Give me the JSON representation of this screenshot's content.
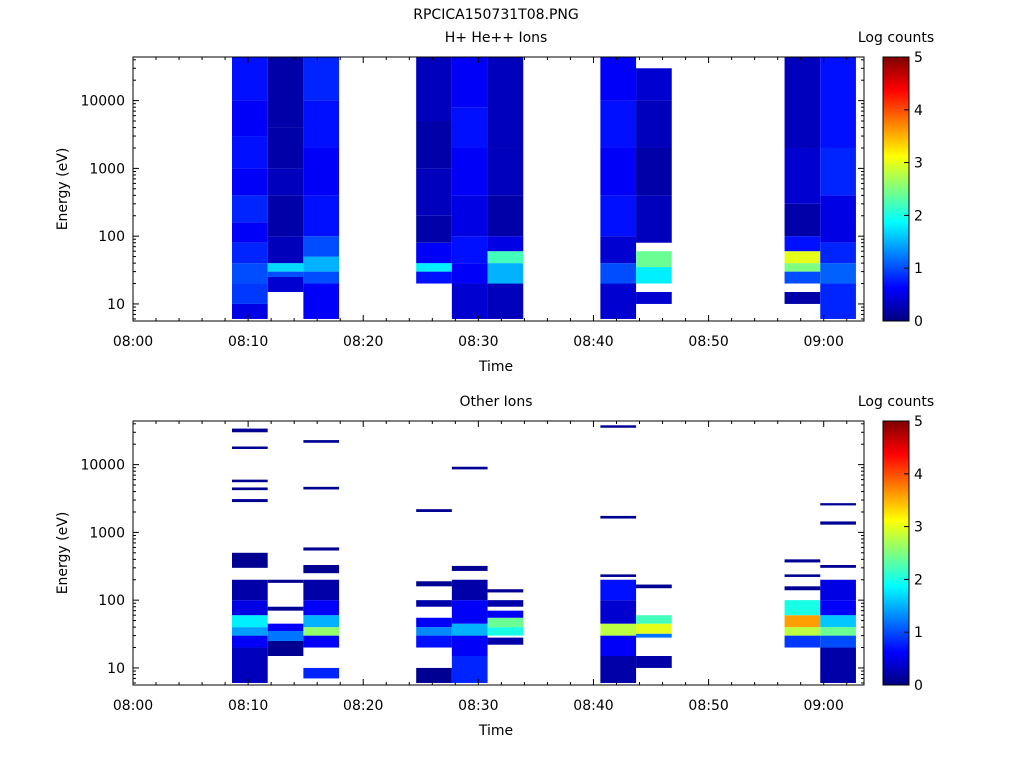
{
  "figure_title": "RPCICA150731T08.PNG",
  "colors": {
    "colormap": [
      "#00007f",
      "#0000ff",
      "#007fff",
      "#00ffff",
      "#7fff7f",
      "#ffff00",
      "#ff7f00",
      "#ff0000",
      "#7f0000"
    ]
  },
  "chart_data": [
    {
      "type": "heatmap",
      "title": "H+ He++ Ions",
      "xlabel": "Time",
      "ylabel": "Energy (eV)",
      "x_tick_labels": [
        "08:00",
        "08:10",
        "08:20",
        "08:30",
        "08:40",
        "08:50",
        "09:00"
      ],
      "y_tick_labels": [
        "10",
        "100",
        "1000",
        "10000"
      ],
      "y_scale": "log",
      "ylim": [
        5.6,
        44000
      ],
      "xlim_minutes": [
        0,
        63.5
      ],
      "colorbar": {
        "label": "Log counts",
        "ticks": [
          "0",
          "1",
          "2",
          "3",
          "4",
          "5"
        ],
        "range": [
          0,
          5
        ]
      },
      "columns": [
        {
          "start_min": 8.6,
          "end_min": 11.7,
          "bands": [
            [
              6,
              10,
              0.5
            ],
            [
              10,
              20,
              0.9
            ],
            [
              20,
              40,
              1.0
            ],
            [
              40,
              80,
              0.8
            ],
            [
              80,
              160,
              0.6
            ],
            [
              160,
              400,
              0.8
            ],
            [
              400,
              1000,
              0.6
            ],
            [
              1000,
              3000,
              0.7
            ],
            [
              3000,
              10000,
              0.6
            ],
            [
              10000,
              44000,
              0.7
            ]
          ]
        },
        {
          "start_min": 11.7,
          "end_min": 14.8,
          "bands": [
            [
              15,
              25,
              0.4
            ],
            [
              25,
              30,
              1.0
            ],
            [
              30,
              40,
              1.7
            ],
            [
              40,
              100,
              0.3
            ],
            [
              100,
              400,
              0.2
            ],
            [
              400,
              1000,
              0.3
            ],
            [
              1000,
              4000,
              0.2
            ],
            [
              4000,
              44000,
              0.2
            ]
          ]
        },
        {
          "start_min": 14.8,
          "end_min": 17.9,
          "bands": [
            [
              6,
              20,
              0.6
            ],
            [
              20,
              30,
              1.0
            ],
            [
              30,
              50,
              1.5
            ],
            [
              50,
              100,
              1.0
            ],
            [
              100,
              400,
              0.7
            ],
            [
              400,
              2000,
              0.6
            ],
            [
              2000,
              10000,
              0.7
            ],
            [
              10000,
              44000,
              0.8
            ]
          ]
        },
        {
          "start_min": 24.6,
          "end_min": 27.7,
          "bands": [
            [
              20,
              30,
              0.7
            ],
            [
              30,
              40,
              1.8
            ],
            [
              40,
              80,
              0.6
            ],
            [
              80,
              200,
              0.2
            ],
            [
              200,
              1000,
              0.3
            ],
            [
              1000,
              5000,
              0.2
            ],
            [
              5000,
              44000,
              0.3
            ]
          ]
        },
        {
          "start_min": 27.7,
          "end_min": 30.8,
          "bands": [
            [
              6,
              20,
              0.4
            ],
            [
              20,
              40,
              0.6
            ],
            [
              40,
              100,
              0.7
            ],
            [
              100,
              400,
              0.5
            ],
            [
              400,
              2000,
              0.6
            ],
            [
              2000,
              8000,
              0.7
            ],
            [
              8000,
              44000,
              0.6
            ]
          ]
        },
        {
          "start_min": 30.8,
          "end_min": 33.9,
          "bands": [
            [
              6,
              20,
              0.3
            ],
            [
              20,
              40,
              1.5
            ],
            [
              40,
              60,
              2.2
            ],
            [
              60,
              100,
              0.5
            ],
            [
              100,
              400,
              0.2
            ],
            [
              400,
              2000,
              0.3
            ],
            [
              2000,
              44000,
              0.3
            ]
          ]
        },
        {
          "start_min": 40.6,
          "end_min": 43.7,
          "bands": [
            [
              6,
              20,
              0.4
            ],
            [
              20,
              40,
              1.0
            ],
            [
              40,
              100,
              0.4
            ],
            [
              100,
              400,
              0.7
            ],
            [
              400,
              2000,
              0.6
            ],
            [
              2000,
              10000,
              0.7
            ],
            [
              10000,
              44000,
              0.6
            ]
          ]
        },
        {
          "start_min": 43.7,
          "end_min": 46.8,
          "bands": [
            [
              10,
              15,
              0.4
            ],
            [
              20,
              35,
              1.8
            ],
            [
              35,
              60,
              2.4
            ],
            [
              80,
              400,
              0.3
            ],
            [
              400,
              2000,
              0.2
            ],
            [
              2000,
              10000,
              0.3
            ],
            [
              10000,
              30000,
              0.4
            ]
          ]
        },
        {
          "start_min": 56.6,
          "end_min": 59.7,
          "bands": [
            [
              10,
              15,
              0.2
            ],
            [
              20,
              30,
              1.0
            ],
            [
              30,
              40,
              2.5
            ],
            [
              40,
              60,
              3.0
            ],
            [
              60,
              100,
              0.7
            ],
            [
              100,
              300,
              0.2
            ],
            [
              300,
              2000,
              0.4
            ],
            [
              2000,
              44000,
              0.3
            ]
          ]
        },
        {
          "start_min": 59.7,
          "end_min": 62.8,
          "bands": [
            [
              6,
              20,
              0.8
            ],
            [
              20,
              40,
              1.1
            ],
            [
              40,
              80,
              0.8
            ],
            [
              80,
              400,
              0.5
            ],
            [
              400,
              2000,
              0.8
            ],
            [
              2000,
              44000,
              0.7
            ]
          ]
        }
      ]
    },
    {
      "type": "heatmap",
      "title": "Other Ions",
      "xlabel": "Time",
      "ylabel": "Energy (eV)",
      "x_tick_labels": [
        "08:00",
        "08:10",
        "08:20",
        "08:30",
        "08:40",
        "08:50",
        "09:00"
      ],
      "y_tick_labels": [
        "10",
        "100",
        "1000",
        "10000"
      ],
      "y_scale": "log",
      "ylim": [
        5.6,
        44000
      ],
      "xlim_minutes": [
        0,
        63.5
      ],
      "colorbar": {
        "label": "Log counts",
        "ticks": [
          "0",
          "1",
          "2",
          "3",
          "4",
          "5"
        ],
        "range": [
          0,
          5
        ]
      },
      "columns": [
        {
          "start_min": 8.6,
          "end_min": 11.7,
          "bands": [
            [
              6,
              20,
              0.3
            ],
            [
              20,
              30,
              0.6
            ],
            [
              30,
              40,
              1.4
            ],
            [
              40,
              60,
              1.8
            ],
            [
              60,
              100,
              0.5
            ],
            [
              100,
              200,
              0.2
            ],
            [
              300,
              500,
              0.1
            ],
            [
              2800,
              3100,
              0.1
            ],
            [
              4200,
              4600,
              0.1
            ],
            [
              5500,
              6000,
              0.1
            ],
            [
              17000,
              18500,
              0.1
            ],
            [
              30000,
              34000,
              0.1
            ]
          ]
        },
        {
          "start_min": 11.7,
          "end_min": 14.8,
          "bands": [
            [
              15,
              25,
              0.1
            ],
            [
              25,
              35,
              1.2
            ],
            [
              35,
              45,
              0.6
            ],
            [
              70,
              80,
              0.1
            ],
            [
              180,
              200,
              0.1
            ]
          ]
        },
        {
          "start_min": 14.8,
          "end_min": 17.9,
          "bands": [
            [
              7,
              10,
              0.8
            ],
            [
              20,
              30,
              0.6
            ],
            [
              30,
              40,
              2.6
            ],
            [
              40,
              60,
              1.5
            ],
            [
              60,
              100,
              0.6
            ],
            [
              100,
              200,
              0.2
            ],
            [
              250,
              330,
              0.1
            ],
            [
              540,
              600,
              0.1
            ],
            [
              4300,
              4700,
              0.1
            ],
            [
              21000,
              23000,
              0.1
            ]
          ]
        },
        {
          "start_min": 24.6,
          "end_min": 27.7,
          "bands": [
            [
              6,
              10,
              0.1
            ],
            [
              20,
              30,
              0.7
            ],
            [
              30,
              40,
              1.3
            ],
            [
              40,
              55,
              0.6
            ],
            [
              80,
              100,
              0.2
            ],
            [
              160,
              190,
              0.1
            ],
            [
              2000,
              2200,
              0.1
            ]
          ]
        },
        {
          "start_min": 27.7,
          "end_min": 30.8,
          "bands": [
            [
              6,
              15,
              0.8
            ],
            [
              15,
              30,
              0.6
            ],
            [
              30,
              45,
              1.5
            ],
            [
              45,
              100,
              0.6
            ],
            [
              100,
              200,
              0.2
            ],
            [
              270,
              320,
              0.1
            ],
            [
              8500,
              9300,
              0.1
            ]
          ]
        },
        {
          "start_min": 30.8,
          "end_min": 33.9,
          "bands": [
            [
              22,
              28,
              0.2
            ],
            [
              30,
              40,
              2.0
            ],
            [
              40,
              55,
              2.4
            ],
            [
              55,
              70,
              0.6
            ],
            [
              80,
              100,
              0.2
            ],
            [
              130,
              145,
              0.1
            ]
          ]
        },
        {
          "start_min": 40.6,
          "end_min": 43.7,
          "bands": [
            [
              6,
              15,
              0.2
            ],
            [
              15,
              30,
              0.6
            ],
            [
              30,
              45,
              2.8
            ],
            [
              45,
              100,
              0.4
            ],
            [
              100,
              200,
              0.7
            ],
            [
              220,
              240,
              0.1
            ],
            [
              1600,
              1750,
              0.1
            ],
            [
              35000,
              38000,
              0.1
            ]
          ]
        },
        {
          "start_min": 43.7,
          "end_min": 46.8,
          "bands": [
            [
              10,
              15,
              0.2
            ],
            [
              28,
              32,
              1.2
            ],
            [
              32,
              45,
              3.0
            ],
            [
              45,
              60,
              2.2
            ],
            [
              150,
              170,
              0.1
            ]
          ]
        },
        {
          "start_min": 56.6,
          "end_min": 59.7,
          "bands": [
            [
              20,
              30,
              0.9
            ],
            [
              30,
              40,
              2.8
            ],
            [
              40,
              60,
              3.6
            ],
            [
              60,
              100,
              2.0
            ],
            [
              140,
              160,
              0.1
            ],
            [
              220,
              240,
              0.1
            ],
            [
              360,
              400,
              0.1
            ]
          ]
        },
        {
          "start_min": 59.7,
          "end_min": 62.8,
          "bands": [
            [
              6,
              20,
              0.2
            ],
            [
              20,
              30,
              1.0
            ],
            [
              30,
              40,
              2.4
            ],
            [
              40,
              60,
              1.6
            ],
            [
              60,
              100,
              0.6
            ],
            [
              100,
              200,
              0.5
            ],
            [
              300,
              330,
              0.1
            ],
            [
              1300,
              1450,
              0.1
            ],
            [
              2500,
              2700,
              0.1
            ]
          ]
        }
      ]
    }
  ]
}
